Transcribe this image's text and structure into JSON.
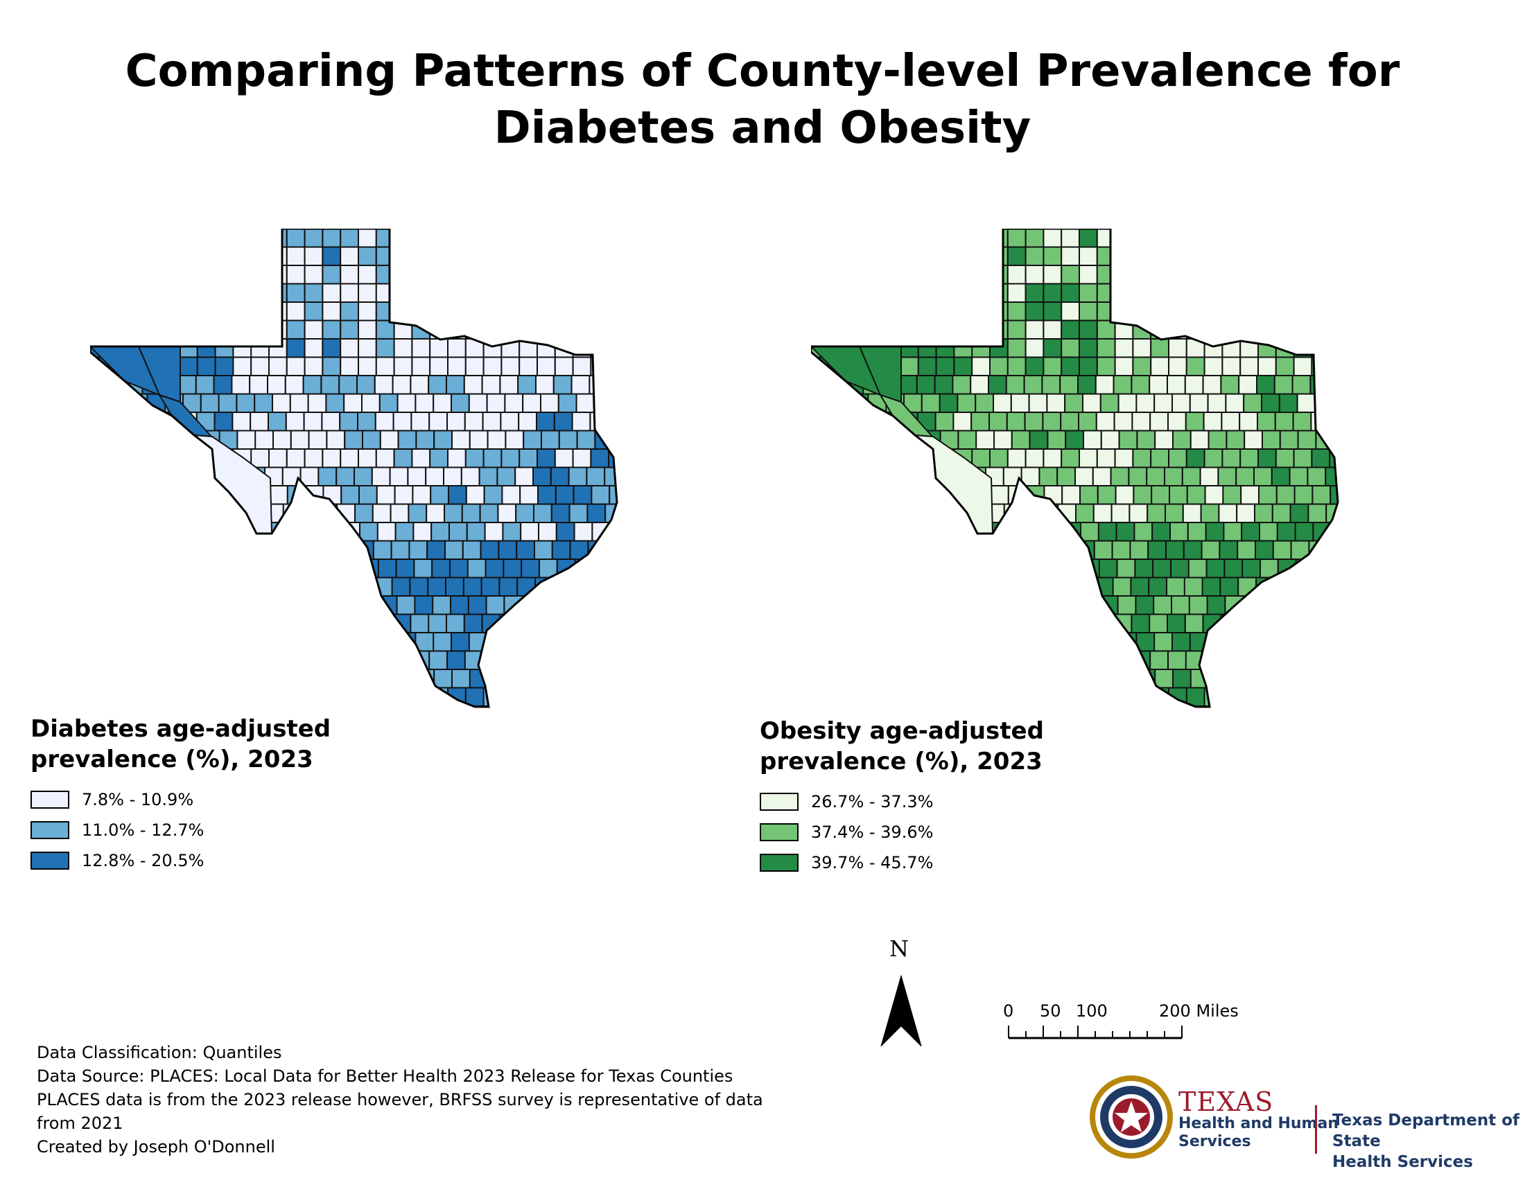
{
  "title": "Comparing Patterns of County-level Prevalence for Diabetes and Obesity",
  "maps": [
    {
      "id": "diabetes",
      "legend_title": "Diabetes age-adjusted prevalence (%), 2023",
      "classes": [
        {
          "label": "7.8% - 10.9%",
          "color": "#eff3ff"
        },
        {
          "label": "11.0% - 12.7%",
          "color": "#6baed6"
        },
        {
          "label": "12.8% - 20.5%",
          "color": "#2171b5"
        }
      ]
    },
    {
      "id": "obesity",
      "legend_title": "Obesity age-adjusted prevalence (%), 2023",
      "classes": [
        {
          "label": "26.7% - 37.3%",
          "color": "#edf8e9"
        },
        {
          "label": "37.4% - 39.6%",
          "color": "#74c476"
        },
        {
          "label": "39.7% - 45.7%",
          "color": "#238b45"
        }
      ]
    }
  ],
  "north_arrow": {
    "label": "N"
  },
  "scale_bar": {
    "ticks": [
      "0",
      "50",
      "100",
      "200 Miles"
    ]
  },
  "notes": [
    "Data Classification: Quantiles",
    "Data Source: PLACES: Local Data for Better Health 2023 Release for Texas Counties",
    "PLACES data is from the 2023 release however, BRFSS survey is representative of data",
    "from 2021",
    "Created by Joseph O'Donnell"
  ],
  "logos": {
    "hhs_texas": "TEXAS",
    "hhs_line1": "Health and Human",
    "hhs_line2": "Services",
    "dshs_line1": "Texas Department of State",
    "dshs_line2": "Health Services"
  }
}
